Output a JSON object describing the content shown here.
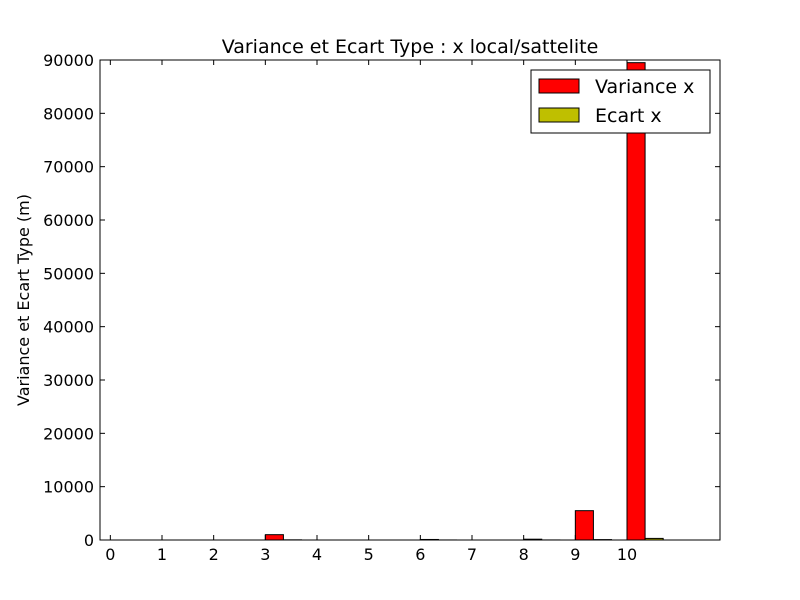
{
  "chart_data": {
    "type": "bar",
    "title": "Variance et Ecart Type : x local/sattelite",
    "xlabel": "",
    "ylabel": "Variance et Ecart Type (m)",
    "categories": [
      "0",
      "1",
      "2",
      "3",
      "4",
      "5",
      "6",
      "7",
      "8",
      "9",
      "10"
    ],
    "series": [
      {
        "name": "Variance x",
        "color": "#ff0000",
        "values": [
          0,
          0,
          0,
          1000,
          0,
          0,
          100,
          0,
          150,
          5500,
          89500
        ]
      },
      {
        "name": "Ecart x",
        "color": "#bfbf00",
        "values": [
          0,
          0,
          0,
          32,
          0,
          0,
          10,
          0,
          12,
          74,
          299
        ]
      }
    ],
    "xlim": [
      -0.2,
      11.8
    ],
    "ylim": [
      0,
      90000
    ],
    "yticks": [
      "0",
      "10000",
      "20000",
      "30000",
      "40000",
      "50000",
      "60000",
      "70000",
      "80000",
      "90000"
    ],
    "grid": false,
    "legend": "top-right"
  }
}
